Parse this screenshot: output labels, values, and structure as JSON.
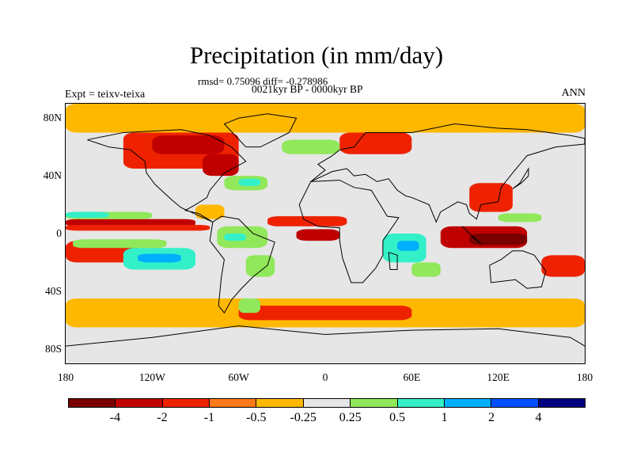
{
  "title": "Precipitation (in mm/day)",
  "stats": "rmsd= 0.75096 diff= -0.278986",
  "period": "0021kyr BP - 0000kyr BP",
  "experiment": "Expt = teixv-teixa",
  "season": "ANN",
  "map": {
    "lat_labels": [
      "80N",
      "40N",
      "0",
      "40S",
      "80S"
    ],
    "lat_values": [
      80,
      40,
      0,
      -40,
      -80
    ],
    "lon_labels": [
      "180",
      "120W",
      "60W",
      "0",
      "60E",
      "120E",
      "180"
    ],
    "lon_values": [
      -180,
      -120,
      -60,
      0,
      60,
      120,
      180
    ],
    "lon_range": [
      -180,
      180
    ],
    "lat_range": [
      -90,
      90
    ],
    "background_color": "#e6e6e6",
    "anomaly_regions": [
      {
        "lon": [
          -180,
          -90
        ],
        "lat": [
          5,
          10
        ],
        "level": -2
      },
      {
        "lon": [
          -180,
          -80
        ],
        "lat": [
          2,
          6
        ],
        "level": -1
      },
      {
        "lon": [
          -180,
          -130
        ],
        "lat": [
          -20,
          -5
        ],
        "level": -1
      },
      {
        "lon": [
          -140,
          -90
        ],
        "lat": [
          -25,
          -10
        ],
        "level": 1
      },
      {
        "lon": [
          -130,
          -100
        ],
        "lat": [
          -20,
          -14
        ],
        "level": 2
      },
      {
        "lon": [
          -175,
          -110
        ],
        "lat": [
          -10,
          -4
        ],
        "level": 0.5
      },
      {
        "lon": [
          -180,
          -120
        ],
        "lat": [
          10,
          15
        ],
        "level": 0.5
      },
      {
        "lon": [
          -180,
          -150
        ],
        "lat": [
          11,
          15
        ],
        "level": 1
      },
      {
        "lon": [
          -140,
          -60
        ],
        "lat": [
          45,
          70
        ],
        "level": -1
      },
      {
        "lon": [
          -120,
          -70
        ],
        "lat": [
          55,
          68
        ],
        "level": -2
      },
      {
        "lon": [
          -85,
          -60
        ],
        "lat": [
          40,
          55
        ],
        "level": -2
      },
      {
        "lon": [
          -70,
          -40
        ],
        "lat": [
          30,
          40
        ],
        "level": 0.5
      },
      {
        "lon": [
          -60,
          -45
        ],
        "lat": [
          33,
          38
        ],
        "level": 1
      },
      {
        "lon": [
          -90,
          -70
        ],
        "lat": [
          10,
          20
        ],
        "level": -0.5
      },
      {
        "lon": [
          -75,
          -40
        ],
        "lat": [
          -10,
          5
        ],
        "level": 0.5
      },
      {
        "lon": [
          -70,
          -55
        ],
        "lat": [
          -5,
          0
        ],
        "level": 1
      },
      {
        "lon": [
          -55,
          -35
        ],
        "lat": [
          -30,
          -15
        ],
        "level": 0.5
      },
      {
        "lon": [
          -40,
          15
        ],
        "lat": [
          5,
          12
        ],
        "level": -1
      },
      {
        "lon": [
          -20,
          10
        ],
        "lat": [
          -5,
          3
        ],
        "level": -2
      },
      {
        "lon": [
          40,
          70
        ],
        "lat": [
          -20,
          0
        ],
        "level": 1
      },
      {
        "lon": [
          50,
          65
        ],
        "lat": [
          -12,
          -5
        ],
        "level": 2
      },
      {
        "lon": [
          60,
          80
        ],
        "lat": [
          -30,
          -20
        ],
        "level": 0.5
      },
      {
        "lon": [
          80,
          140
        ],
        "lat": [
          -10,
          5
        ],
        "level": -2
      },
      {
        "lon": [
          100,
          140
        ],
        "lat": [
          -8,
          0
        ],
        "level": -4
      },
      {
        "lon": [
          100,
          130
        ],
        "lat": [
          15,
          35
        ],
        "level": -1
      },
      {
        "lon": [
          120,
          150
        ],
        "lat": [
          8,
          14
        ],
        "level": 0.5
      },
      {
        "lon": [
          10,
          60
        ],
        "lat": [
          55,
          70
        ],
        "level": -1
      },
      {
        "lon": [
          -30,
          10
        ],
        "lat": [
          55,
          65
        ],
        "level": 0.5
      },
      {
        "lon": [
          -180,
          180
        ],
        "lat": [
          -65,
          -45
        ],
        "level": -0.5
      },
      {
        "lon": [
          -60,
          60
        ],
        "lat": [
          -60,
          -50
        ],
        "level": -1
      },
      {
        "lon": [
          -180,
          180
        ],
        "lat": [
          70,
          90
        ],
        "level": -0.5
      },
      {
        "lon": [
          150,
          180
        ],
        "lat": [
          -30,
          -15
        ],
        "level": -1
      },
      {
        "lon": [
          -60,
          -45
        ],
        "lat": [
          -55,
          -45
        ],
        "level": 0.5
      }
    ]
  },
  "colorbar": {
    "colors": [
      "#7a0000",
      "#c00000",
      "#ee2200",
      "#ff7a1a",
      "#ffb800",
      "#e6e6e6",
      "#90e85a",
      "#33f0c8",
      "#00b0ff",
      "#0050ff",
      "#000080"
    ],
    "labels": [
      "-4",
      "-2",
      "-1",
      "-0.5",
      "-0.25",
      "0.25",
      "0.5",
      "1",
      "2",
      "4"
    ],
    "level_colors": {
      "-4": "#7a0000",
      "-2": "#c00000",
      "-1": "#ee2200",
      "-0.5": "#ffb800",
      "0.5": "#90e85a",
      "1": "#33f0c8",
      "2": "#00b0ff",
      "4": "#0050ff"
    }
  }
}
